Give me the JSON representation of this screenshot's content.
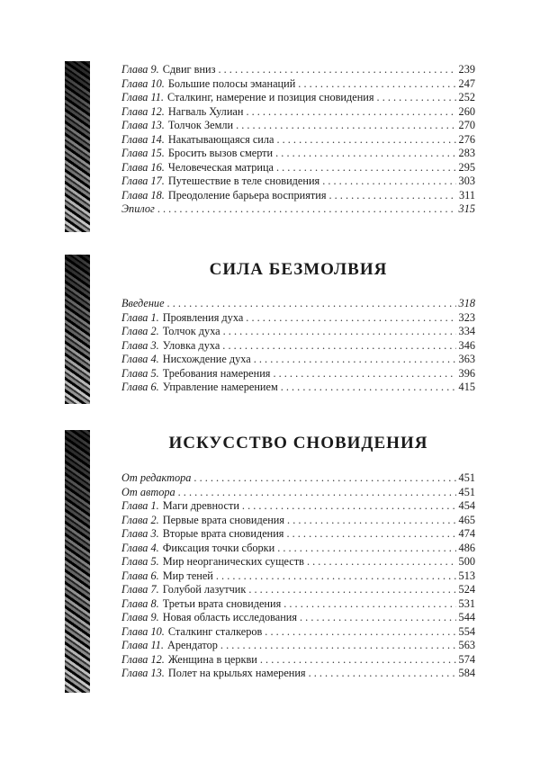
{
  "sections": [
    {
      "title": "",
      "entries": [
        {
          "label": "Глава 9.",
          "name": "Сдвиг вниз",
          "page": "239"
        },
        {
          "label": "Глава 10.",
          "name": "Большие полосы эманаций",
          "page": "247"
        },
        {
          "label": "Глава 11.",
          "name": "Сталкинг, намерение и позиция сновидения",
          "page": "252"
        },
        {
          "label": "Глава 12.",
          "name": "Нагваль Хулиан",
          "page": "260"
        },
        {
          "label": "Глава 13.",
          "name": "Толчок Земли",
          "page": "270"
        },
        {
          "label": "Глава 14.",
          "name": "Накатывающаяся сила",
          "page": "276"
        },
        {
          "label": "Глава 15.",
          "name": "Бросить вызов смерти",
          "page": "283"
        },
        {
          "label": "Глава 16.",
          "name": "Человеческая матрица",
          "page": "295"
        },
        {
          "label": "Глава 17.",
          "name": "Путешествие в теле сновидения",
          "page": "303"
        },
        {
          "label": "Глава 18.",
          "name": "Преодоление барьера восприятия",
          "page": "311"
        },
        {
          "label": "Эпилог",
          "name": "",
          "page": "315",
          "italic_page": true
        }
      ]
    },
    {
      "title": "СИЛА БЕЗМОЛВИЯ",
      "entries": [
        {
          "label": "Введение",
          "name": "",
          "page": "318",
          "italic_page": true
        },
        {
          "label": "Глава 1.",
          "name": "Проявления духа",
          "page": "323"
        },
        {
          "label": "Глава 2.",
          "name": "Толчок духа",
          "page": "334"
        },
        {
          "label": "Глава 3.",
          "name": "Уловка духа",
          "page": "346"
        },
        {
          "label": "Глава 4.",
          "name": "Нисхождение духа",
          "page": "363"
        },
        {
          "label": "Глава 5.",
          "name": "Требования намерения",
          "page": "396"
        },
        {
          "label": "Глава 6.",
          "name": "Управление намерением",
          "page": "415"
        }
      ]
    },
    {
      "title": "ИСКУССТВО СНОВИДЕНИЯ",
      "entries": [
        {
          "label": "От редактора",
          "name": "",
          "page": "451"
        },
        {
          "label": "От автора",
          "name": "",
          "page": "451"
        },
        {
          "label": "Глава 1.",
          "name": "Маги древности",
          "page": "454"
        },
        {
          "label": "Глава 2.",
          "name": "Первые врата сновидения",
          "page": "465"
        },
        {
          "label": "Глава 3.",
          "name": "Вторые врата сновидения",
          "page": "474"
        },
        {
          "label": "Глава 4.",
          "name": "Фиксация точки сборки",
          "page": "486"
        },
        {
          "label": "Глава 5.",
          "name": "Мир неорганических существ",
          "page": "500"
        },
        {
          "label": "Глава 6.",
          "name": "Мир теней",
          "page": "513"
        },
        {
          "label": "Глава 7.",
          "name": "Голубой лазутчик",
          "page": "524"
        },
        {
          "label": "Глава 8.",
          "name": "Третьи врата сновидения",
          "page": "531"
        },
        {
          "label": "Глава 9.",
          "name": "Новая область исследования",
          "page": "544"
        },
        {
          "label": "Глава 10.",
          "name": "Сталкинг сталкеров",
          "page": "554"
        },
        {
          "label": "Глава 11.",
          "name": "Арендатор",
          "page": "563"
        },
        {
          "label": "Глава 12.",
          "name": "Женщина в церкви",
          "page": "574"
        },
        {
          "label": "Глава 13.",
          "name": "Полет на крыльях намерения",
          "page": "584"
        }
      ]
    }
  ]
}
